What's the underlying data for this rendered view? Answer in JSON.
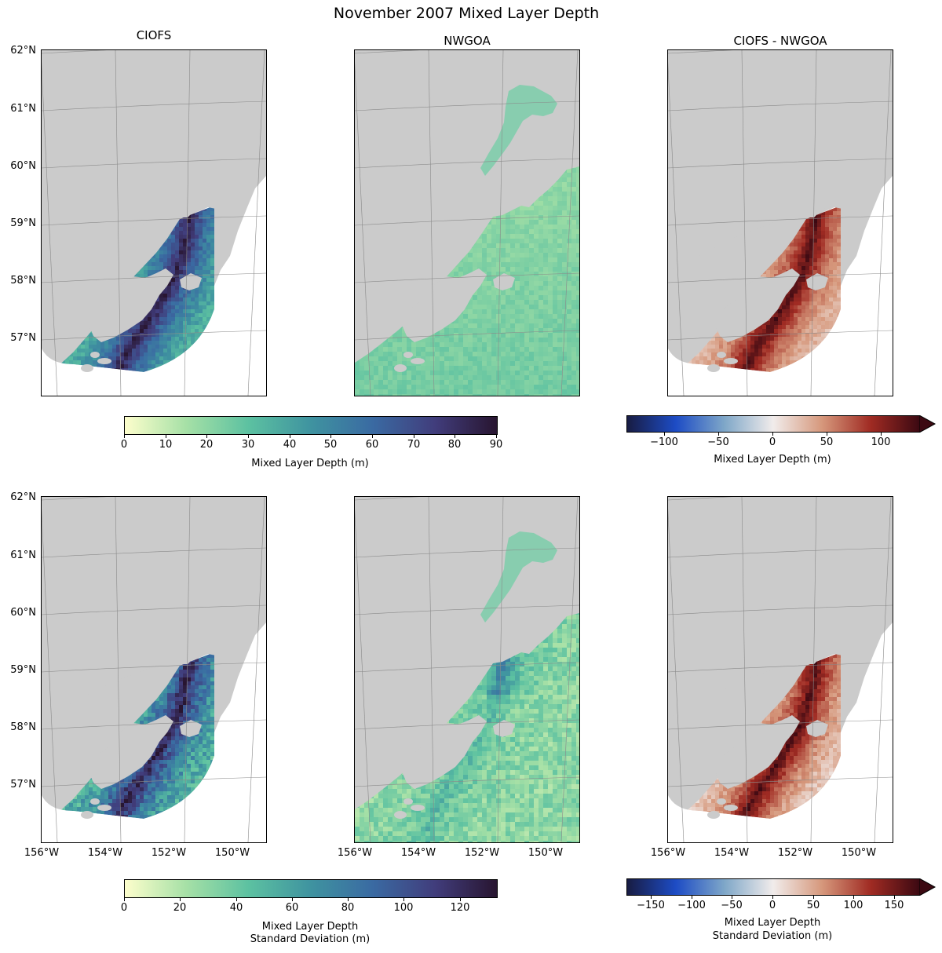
{
  "title": "November 2007 Mixed Layer Depth",
  "columns": [
    "CIOFS",
    "NWGOA",
    "CIOFS - NWGOA"
  ],
  "lat_labels": [
    "62°N",
    "61°N",
    "60°N",
    "59°N",
    "58°N",
    "57°N"
  ],
  "lon_labels": [
    "156°W",
    "154°W",
    "152°W",
    "150°W"
  ],
  "rows": [
    {
      "quantity": "Mean mixed layer depth",
      "colorbars": [
        {
          "label": "Mixed Layer Depth (m)",
          "ticks": [
            "0",
            "10",
            "20",
            "30",
            "40",
            "50",
            "60",
            "70",
            "80",
            "90"
          ],
          "colormap": "deep",
          "range": [
            0,
            90
          ],
          "extend": "neither"
        },
        {
          "label": "Mixed Layer Depth (m)",
          "ticks": [
            "−100",
            "−50",
            "0",
            "50",
            "100"
          ],
          "colormap": "balance",
          "range": [
            -135,
            135
          ],
          "extend": "max"
        }
      ]
    },
    {
      "quantity": "Standard deviation of mixed layer depth",
      "colorbars": [
        {
          "label_line1": "Mixed Layer Depth",
          "label_line2": "Standard Deviation (m)",
          "ticks": [
            "0",
            "20",
            "40",
            "60",
            "80",
            "100",
            "120"
          ],
          "colormap": "deep",
          "range": [
            0,
            133
          ],
          "extend": "neither"
        },
        {
          "label_line1": "Mixed Layer Depth",
          "label_line2": "Standard Deviation (m)",
          "ticks": [
            "−150",
            "−100",
            "−50",
            "0",
            "50",
            "100",
            "150"
          ],
          "colormap": "balance",
          "range": [
            -180,
            180
          ],
          "extend": "max"
        }
      ]
    }
  ],
  "colors": {
    "land": "#cbcbcb",
    "deep_colormap": [
      "#fdfecc",
      "#a5e0a6",
      "#5cc1a1",
      "#3f93a0",
      "#3a6aa2",
      "#413d7c",
      "#281530"
    ],
    "balance_colormap": [
      "#181c43",
      "#1d4cc5",
      "#7fa7c8",
      "#f1eceb",
      "#d6987c",
      "#a02b23",
      "#3c0912"
    ]
  }
}
